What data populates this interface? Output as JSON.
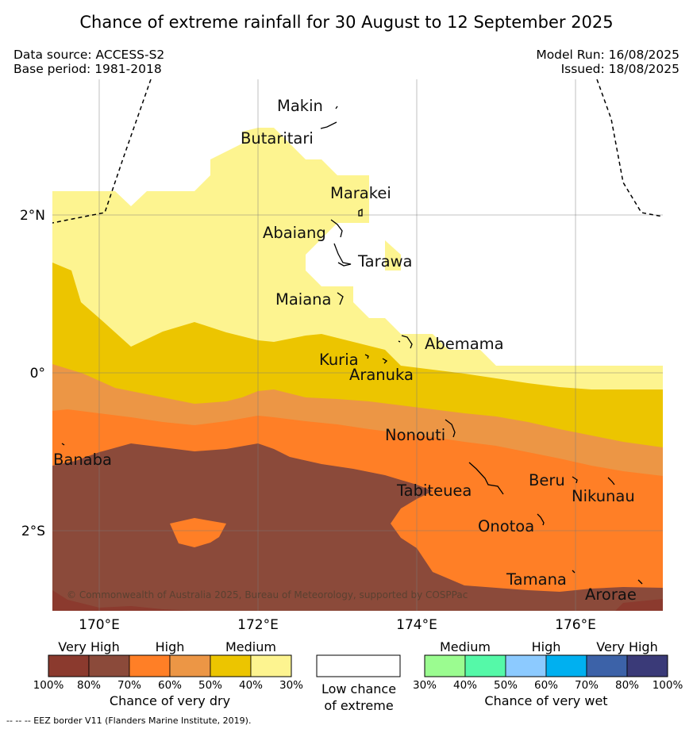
{
  "header": {
    "title": "Chance of extreme rainfall for 30 August to 12 September 2025",
    "data_source": "Data source: ACCESS-S2",
    "base_period": "Base period: 1981-2018",
    "model_run": "Model Run: 16/08/2025",
    "issued": "Issued: 18/08/2025"
  },
  "map": {
    "x_ticks": [
      "170°E",
      "172°E",
      "174°E",
      "176°E"
    ],
    "y_ticks": [
      "2°N",
      "0°",
      "2°S"
    ],
    "places": {
      "makin": "Makin",
      "butaritari": "Butaritari",
      "marakei": "Marakei",
      "abaiang": "Abaiang",
      "tarawa": "Tarawa",
      "maiana": "Maiana",
      "abemama": "Abemama",
      "kuria": "Kuria",
      "aranuka": "Aranuka",
      "nonouti": "Nonouti",
      "banaba": "Banaba",
      "tabiteuea": "Tabiteuea",
      "beru": "Beru",
      "nikunau": "Nikunau",
      "onotoa": "Onotoa",
      "tamana": "Tamana",
      "arorae": "Arorae"
    },
    "copyright": "© Commonwealth of Australia 2025, Bureau of Meteorology, supported by COSPPac"
  },
  "legend": {
    "dry": {
      "categories": [
        "Very High",
        "High",
        "Medium"
      ],
      "percentages": [
        "100%",
        "80%",
        "70%",
        "60%",
        "50%",
        "40%",
        "30%"
      ],
      "caption": "Chance of very dry",
      "colors": [
        "#8b3a2e",
        "#8b4a3a",
        "#ff7f26",
        "#ec9645",
        "#ecc500",
        "#fdf490"
      ]
    },
    "neutral": {
      "caption_line1": "Low chance",
      "caption_line2": "of extreme",
      "color": "#ffffff"
    },
    "wet": {
      "categories": [
        "Medium",
        "High",
        "Very High"
      ],
      "percentages": [
        "30%",
        "40%",
        "50%",
        "60%",
        "70%",
        "80%",
        "100%"
      ],
      "caption": "Chance of very wet",
      "colors": [
        "#9bfc90",
        "#55f9a8",
        "#8ccaff",
        "#00b0f0",
        "#3c62a8",
        "#3a3a78"
      ]
    }
  },
  "footer": {
    "eez_note": "--  --  -- EEZ border V11 (Flanders Marine Institute, 2019)."
  }
}
